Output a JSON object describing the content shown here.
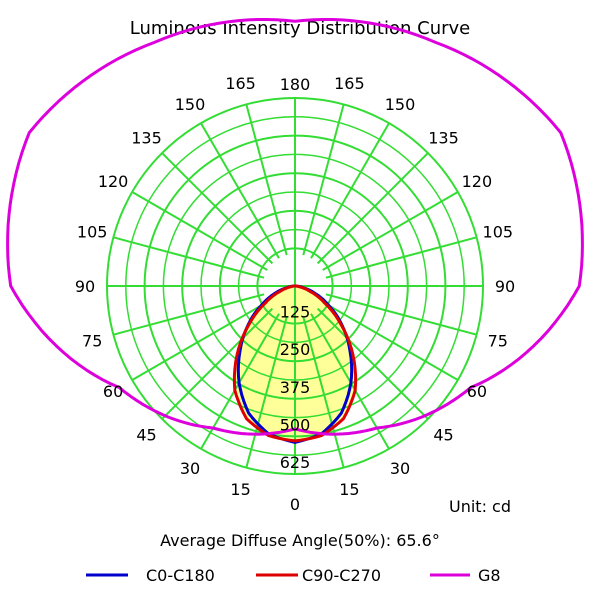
{
  "chart_data": {
    "type": "polar",
    "title": "Luminous Intensity Distribution Curve",
    "unit_label": "Unit: cd",
    "info_text": "Average Diffuse Angle(50%): 65.6°",
    "radial_axis": {
      "max": 625,
      "ticks": [
        125,
        250,
        375,
        500,
        625
      ]
    },
    "angle_ticks": [
      0,
      15,
      30,
      45,
      60,
      75,
      90,
      105,
      120,
      135,
      150,
      165,
      180
    ],
    "grid": true,
    "grid_color": "#33dd33",
    "fill_color": "#ffff99",
    "legend_position": "bottom",
    "series": [
      {
        "name": "C0-C180",
        "color": "#0000cc",
        "angles": [
          0,
          10,
          20,
          30,
          40,
          50,
          60,
          70,
          80,
          90
        ],
        "values": [
          520,
          500,
          450,
          372,
          285,
          205,
          130,
          70,
          22,
          0
        ]
      },
      {
        "name": "C90-C270",
        "color": "#dd0000",
        "angles": [
          0,
          10,
          20,
          30,
          40,
          50,
          60,
          70,
          80,
          90
        ],
        "values": [
          515,
          505,
          470,
          400,
          300,
          200,
          115,
          55,
          15,
          0
        ]
      },
      {
        "name": "G8",
        "color": "#dd00dd",
        "angles": [
          0,
          30,
          60,
          90,
          120,
          150,
          180
        ],
        "values": [
          475,
          545,
          675,
          945,
          1020,
          935,
          880
        ]
      }
    ]
  }
}
